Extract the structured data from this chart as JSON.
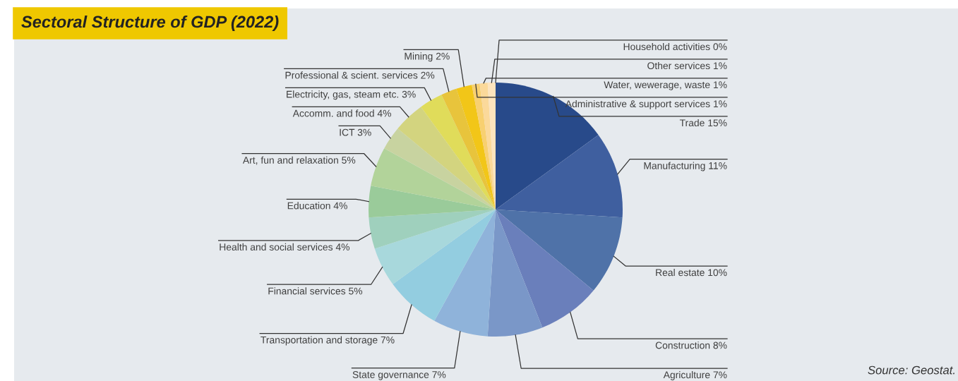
{
  "chart_data": {
    "type": "pie",
    "title": "Sectoral Structure of GDP (2022)",
    "categories": [
      "Trade",
      "Manufacturing",
      "Real estate",
      "Construction",
      "Agriculture",
      "State governance",
      "Transportation and storage",
      "Financial services",
      "Health and social services",
      "Education",
      "Art, fun and relaxation",
      "ICT",
      "Accomm. and food",
      "Electricity, gas, steam etc.",
      "Professional & scient. services",
      "Mining",
      "Administrative & support services",
      "Water, wewerage, waste",
      "Other services",
      "Household activities"
    ],
    "values": [
      15,
      11,
      10,
      8,
      7,
      7,
      7,
      5,
      4,
      4,
      5,
      3,
      4,
      3,
      2,
      2,
      1,
      1,
      1,
      0
    ],
    "value_labels": [
      "15%",
      "11%",
      "10%",
      "8%",
      "7%",
      "7%",
      "7%",
      "5%",
      "4%",
      "4%",
      "5%",
      "3%",
      "4%",
      "3%",
      "2%",
      "2%",
      "1%",
      "1%",
      "1%",
      "0%"
    ],
    "colors": [
      "#284a8a",
      "#3f5f9f",
      "#4f72a8",
      "#6a7fbb",
      "#7a97c8",
      "#8fb3da",
      "#93cde0",
      "#a8d8dc",
      "#9fd0bd",
      "#9acb9a",
      "#b2d39a",
      "#c8d3a0",
      "#d3d47f",
      "#e0dc5a",
      "#e8c43c",
      "#f2c618",
      "#f8d070",
      "#fbd99a",
      "#fde4bd",
      "#fdf0dc"
    ],
    "legend": false,
    "annotations": [
      "Source: Geostat."
    ]
  }
}
